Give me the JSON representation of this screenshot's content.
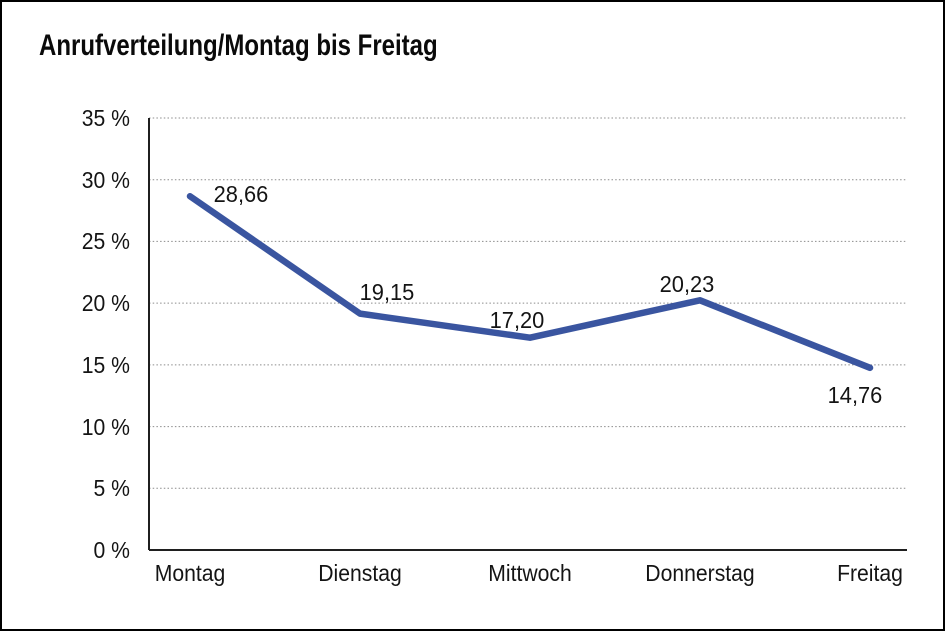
{
  "chart_data": {
    "type": "line",
    "title": "Anrufverteilung/Montag bis Freitag",
    "categories": [
      "Montag",
      "Dienstag",
      "Mittwoch",
      "Donnerstag",
      "Freitag"
    ],
    "series": [
      {
        "name": "Anrufverteilung",
        "values": [
          28.66,
          19.15,
          17.2,
          20.23,
          14.76
        ]
      }
    ],
    "value_labels": [
      "28,66",
      "19,15",
      "17,20",
      "20,23",
      "14,76"
    ],
    "xlabel": "",
    "ylabel": "",
    "ylim": [
      0,
      35
    ],
    "ytick_step": 5,
    "yticks": [
      35,
      30,
      25,
      20,
      15,
      10,
      5,
      0
    ],
    "ytick_labels": [
      "35 %",
      "30 %",
      "25 %",
      "20 %",
      "15 %",
      "10 %",
      "5 %",
      "0 %"
    ],
    "grid": "horizontal-dotted",
    "legend_position": "none"
  },
  "colors": {
    "line": "#3A55A0",
    "grid": "#8c8c8c",
    "axis": "#1f1f1f",
    "text": "#141414",
    "background": "#ffffff",
    "border": "#000000"
  }
}
